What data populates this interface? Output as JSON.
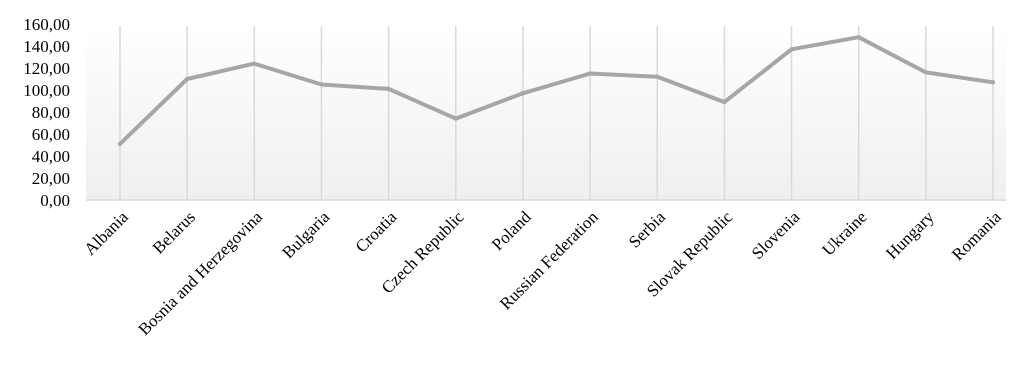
{
  "chart_data": {
    "type": "line",
    "categories": [
      "Albania",
      "Belarus",
      "Bosnia and Herzegovina",
      "Bulgaria",
      "Croatia",
      "Czech Republic",
      "Poland",
      "Russian Federation",
      "Serbia",
      "Slovak Republic",
      "Slovenia",
      "Ukraine",
      "Hungary",
      "Romania"
    ],
    "series": [
      {
        "values": [
          51,
          110,
          124,
          105,
          101,
          74,
          97,
          115,
          112,
          89,
          137,
          148,
          116,
          107
        ]
      }
    ],
    "yticks": [
      "0,00",
      "20,00",
      "40,00",
      "60,00",
      "80,00",
      "100,00",
      "120,00",
      "140,00",
      "160,00"
    ],
    "ylim": [
      0,
      160
    ],
    "grid": "vertical",
    "background": "gradient-light-gray",
    "colors": {
      "line": "#a6a6a6",
      "grid": "#d9d9d9",
      "bg_top": "#ffffff",
      "bg_bottom": "#efefef"
    }
  }
}
